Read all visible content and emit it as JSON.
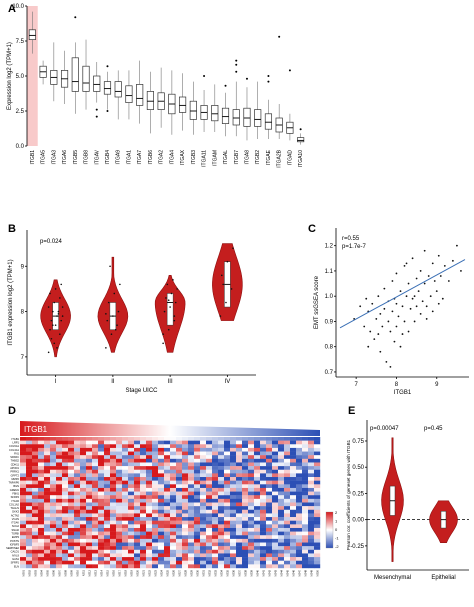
{
  "panels": {
    "A": {
      "label": "A"
    },
    "B": {
      "label": "B"
    },
    "C": {
      "label": "C"
    },
    "D": {
      "label": "D"
    },
    "E": {
      "label": "E"
    }
  },
  "colors": {
    "highlight": "#f5b8b8",
    "violin": "#c41e1e",
    "line": "#3a6fb5",
    "heat_high": "#d7191c",
    "heat_low": "#2c4fb5"
  },
  "chart_data": [
    {
      "panel": "A",
      "type": "box",
      "ylabel": "Expression log2 (TPM+1)",
      "ylim": [
        0.0,
        10.0
      ],
      "yticks": [
        "0.0",
        "2.5",
        "5.0",
        "7.5",
        "10.0"
      ],
      "highlight": "ITGB1",
      "categories": [
        "ITGB1",
        "ITGA5",
        "ITGA3",
        "ITGA6",
        "ITGB5",
        "ITGB8",
        "ITGAV",
        "ITGB4",
        "ITGA9",
        "ITGA1",
        "ITGA7",
        "ITGB6",
        "ITGA2",
        "ITGA4",
        "ITGAX",
        "ITGB3",
        "ITGA11",
        "ITGAM",
        "ITGAL",
        "ITGB7",
        "ITGA8",
        "ITGB2",
        "ITGAE",
        "ITGA2B",
        "ITGAD",
        "ITGA10"
      ],
      "boxes": [
        {
          "min": 6.6,
          "q1": 7.6,
          "median": 7.9,
          "q3": 8.3,
          "max": 9.6,
          "outliers": []
        },
        {
          "min": 4.4,
          "q1": 4.9,
          "median": 5.3,
          "q3": 5.7,
          "max": 6.1,
          "outliers": []
        },
        {
          "min": 3.2,
          "q1": 4.4,
          "median": 4.9,
          "q3": 5.4,
          "max": 7.4,
          "outliers": []
        },
        {
          "min": 3.0,
          "q1": 4.2,
          "median": 4.8,
          "q3": 5.4,
          "max": 6.8,
          "outliers": []
        },
        {
          "min": 2.3,
          "q1": 3.9,
          "median": 4.6,
          "q3": 6.3,
          "max": 7.4,
          "outliers": [
            9.2
          ]
        },
        {
          "min": 2.6,
          "q1": 3.9,
          "median": 4.5,
          "q3": 5.7,
          "max": 7.6,
          "outliers": []
        },
        {
          "min": 3.1,
          "q1": 3.9,
          "median": 4.4,
          "q3": 5.0,
          "max": 6.0,
          "outliers": [
            2.6,
            2.1
          ]
        },
        {
          "min": 2.6,
          "q1": 3.7,
          "median": 4.1,
          "q3": 4.6,
          "max": 5.3,
          "outliers": [
            5.7,
            2.5
          ]
        },
        {
          "min": 1.9,
          "q1": 3.5,
          "median": 3.9,
          "q3": 4.6,
          "max": 5.4,
          "outliers": []
        },
        {
          "min": 1.9,
          "q1": 3.1,
          "median": 3.6,
          "q3": 4.3,
          "max": 5.4,
          "outliers": []
        },
        {
          "min": 1.6,
          "q1": 2.9,
          "median": 3.4,
          "q3": 4.4,
          "max": 6.1,
          "outliers": []
        },
        {
          "min": 0.9,
          "q1": 2.6,
          "median": 3.2,
          "q3": 3.9,
          "max": 5.3,
          "outliers": []
        },
        {
          "min": 1.3,
          "q1": 2.6,
          "median": 3.2,
          "q3": 3.8,
          "max": 5.6,
          "outliers": []
        },
        {
          "min": 0.8,
          "q1": 2.3,
          "median": 3.0,
          "q3": 3.7,
          "max": 5.4,
          "outliers": []
        },
        {
          "min": 1.1,
          "q1": 2.4,
          "median": 2.9,
          "q3": 3.5,
          "max": 5.2,
          "outliers": []
        },
        {
          "min": 0.8,
          "q1": 1.9,
          "median": 2.5,
          "q3": 3.2,
          "max": 4.6,
          "outliers": []
        },
        {
          "min": 1.0,
          "q1": 1.9,
          "median": 2.4,
          "q3": 2.9,
          "max": 4.0,
          "outliers": [
            5.0
          ]
        },
        {
          "min": 1.0,
          "q1": 1.8,
          "median": 2.3,
          "q3": 2.9,
          "max": 4.4,
          "outliers": []
        },
        {
          "min": 0.7,
          "q1": 1.6,
          "median": 2.1,
          "q3": 2.7,
          "max": 3.8,
          "outliers": [
            4.3
          ]
        },
        {
          "min": 0.7,
          "q1": 1.5,
          "median": 2.0,
          "q3": 2.6,
          "max": 4.6,
          "outliers": [
            6.1,
            5.8,
            5.3
          ]
        },
        {
          "min": 0.4,
          "q1": 1.4,
          "median": 2.0,
          "q3": 2.7,
          "max": 4.2,
          "outliers": [
            4.8
          ]
        },
        {
          "min": 0.5,
          "q1": 1.4,
          "median": 1.9,
          "q3": 2.6,
          "max": 4.6,
          "outliers": []
        },
        {
          "min": 0.5,
          "q1": 1.2,
          "median": 1.7,
          "q3": 2.3,
          "max": 3.3,
          "outliers": [
            5.0,
            4.6
          ]
        },
        {
          "min": 0.5,
          "q1": 1.0,
          "median": 1.5,
          "q3": 2.0,
          "max": 3.0,
          "outliers": [
            7.8
          ]
        },
        {
          "min": 0.4,
          "q1": 0.9,
          "median": 1.3,
          "q3": 1.7,
          "max": 2.3,
          "outliers": [
            5.4
          ]
        },
        {
          "min": 0.1,
          "q1": 0.3,
          "median": 0.4,
          "q3": 0.6,
          "max": 0.9,
          "outliers": [
            1.2
          ]
        }
      ]
    },
    {
      "panel": "B",
      "type": "violin",
      "ylabel": "ITGB1 expression log2 (TPM+1)",
      "xlabel": "Stage UICC",
      "annotation": "p=0.024",
      "ylim": [
        6.6,
        9.8
      ],
      "yticks": [
        "7",
        "8",
        "9"
      ],
      "categories": [
        "I",
        "II",
        "III",
        "IV"
      ],
      "groups": [
        {
          "min": 7.0,
          "q1": 7.6,
          "median": 7.9,
          "q3": 8.2,
          "max": 8.7,
          "points": [
            7.1,
            7.3,
            7.5,
            7.6,
            7.7,
            7.8,
            7.8,
            7.9,
            7.9,
            8.0,
            8.0,
            8.1,
            8.2,
            8.3,
            8.4,
            8.5,
            8.6,
            7.4,
            7.2,
            8.1,
            7.7,
            7.95
          ]
        },
        {
          "min": 7.1,
          "q1": 7.6,
          "median": 7.9,
          "q3": 8.2,
          "max": 9.2,
          "points": [
            7.2,
            7.5,
            7.7,
            7.8,
            7.9,
            8.0,
            8.2,
            8.4,
            8.6,
            9.0,
            7.6,
            7.95
          ]
        },
        {
          "min": 7.1,
          "q1": 7.7,
          "median": 8.2,
          "q3": 8.4,
          "max": 8.8,
          "points": [
            7.3,
            7.6,
            7.8,
            8.0,
            8.1,
            8.2,
            8.3,
            8.4,
            8.5,
            8.6,
            8.7,
            7.5,
            8.25,
            7.9
          ]
        },
        {
          "min": 7.8,
          "q1": 8.1,
          "median": 8.6,
          "q3": 9.1,
          "max": 9.5,
          "points": [
            7.9,
            8.2,
            8.5,
            8.8,
            9.1,
            9.4,
            8.6
          ]
        }
      ]
    },
    {
      "panel": "C",
      "type": "scatter",
      "ylabel": "EMT ssGSEA score",
      "xlabel": "ITGB1",
      "annotations": [
        "r=0.55",
        "p=1.7e-7"
      ],
      "xlim": [
        6.5,
        9.8
      ],
      "ylim": [
        0.68,
        1.27
      ],
      "xticks": [
        "7",
        "8",
        "9"
      ],
      "yticks": [
        "0.7",
        "0.8",
        "0.9",
        "1.0",
        "1.1",
        "1.2"
      ],
      "fit": {
        "x": [
          6.6,
          9.7
        ],
        "y": [
          0.875,
          1.145
        ]
      },
      "points": [
        [
          6.95,
          0.91
        ],
        [
          7.1,
          0.96
        ],
        [
          7.2,
          0.88
        ],
        [
          7.25,
          0.99
        ],
        [
          7.3,
          0.94
        ],
        [
          7.35,
          0.86
        ],
        [
          7.4,
          0.97
        ],
        [
          7.45,
          0.83
        ],
        [
          7.5,
          0.91
        ],
        [
          7.55,
          1.0
        ],
        [
          7.6,
          0.93
        ],
        [
          7.6,
          0.78
        ],
        [
          7.65,
          0.88
        ],
        [
          7.7,
          0.95
        ],
        [
          7.7,
          1.03
        ],
        [
          7.75,
          0.74
        ],
        [
          7.8,
          0.9
        ],
        [
          7.8,
          0.98
        ],
        [
          7.85,
          0.86
        ],
        [
          7.9,
          1.06
        ],
        [
          7.9,
          0.94
        ],
        [
          7.95,
          0.82
        ],
        [
          8.0,
          0.97
        ],
        [
          8.0,
          1.09
        ],
        [
          8.0,
          0.88
        ],
        [
          8.05,
          0.92
        ],
        [
          8.1,
          1.02
        ],
        [
          8.1,
          0.8
        ],
        [
          8.15,
          0.96
        ],
        [
          8.2,
          1.12
        ],
        [
          8.2,
          0.9
        ],
        [
          8.25,
          1.0
        ],
        [
          8.3,
          0.86
        ],
        [
          8.3,
          1.05
        ],
        [
          8.35,
          0.95
        ],
        [
          8.4,
          1.15
        ],
        [
          8.4,
          0.99
        ],
        [
          8.45,
          0.9
        ],
        [
          8.5,
          1.07
        ],
        [
          8.5,
          0.96
        ],
        [
          8.55,
          1.02
        ],
        [
          8.6,
          0.93
        ],
        [
          8.6,
          1.1
        ],
        [
          8.65,
          0.98
        ],
        [
          8.7,
          1.05
        ],
        [
          8.7,
          1.18
        ],
        [
          8.75,
          0.96
        ],
        [
          8.8,
          1.08
        ],
        [
          8.85,
          1.0
        ],
        [
          8.9,
          1.13
        ],
        [
          8.9,
          0.94
        ],
        [
          8.95,
          1.06
        ],
        [
          9.0,
          1.02
        ],
        [
          9.05,
          1.16
        ],
        [
          9.1,
          1.08
        ],
        [
          9.15,
          0.99
        ],
        [
          9.2,
          1.12
        ],
        [
          9.3,
          1.06
        ],
        [
          9.4,
          1.14
        ],
        [
          9.5,
          1.2
        ],
        [
          9.6,
          1.1
        ],
        [
          7.3,
          0.8
        ],
        [
          7.55,
          0.85
        ],
        [
          7.85,
          0.72
        ],
        [
          8.15,
          0.85
        ],
        [
          8.45,
          1.0
        ],
        [
          8.75,
          0.91
        ],
        [
          9.05,
          0.97
        ],
        [
          8.25,
          1.13
        ],
        [
          7.95,
          0.99
        ]
      ]
    },
    {
      "panel": "D",
      "type": "heatmap",
      "gradient_label": "ITGB1",
      "legend_ticks": [
        "2",
        "1",
        "0",
        "-1",
        "-2"
      ],
      "rows": [
        "ITGB1",
        "LRP1",
        "COL5A1",
        "COL3A1",
        "FN1",
        "SPARC",
        "THBS2",
        "CDH11",
        "APOD1",
        "PRRX1",
        "GFPT2",
        "MMP2",
        "TNFAIP6",
        "BGN",
        "GREM1",
        "FBN1",
        "SFRP4",
        "ITGA5",
        "COL1A2",
        "TAGLN",
        "DKK3",
        "ACTA2",
        "VCAN",
        "ITGAV",
        "SCG2",
        "SNAI2",
        "TGFBI",
        "EMP3",
        "POSTN",
        "IGFBP3",
        "SERPINE2",
        "CALD1",
        "MYL9",
        "GAS1",
        "SFRP1",
        "ELN"
      ],
      "columns": [
        "NS01",
        "NS02",
        "NS03",
        "NS04",
        "NS05",
        "NS06",
        "NS07",
        "NS08",
        "NS09",
        "NS10",
        "NS11",
        "NS12",
        "NS13",
        "NS14",
        "NS15",
        "NS16",
        "NS17",
        "NS18",
        "NS19",
        "NS20",
        "NS21",
        "NS22",
        "NS23",
        "NS24",
        "NS25",
        "NS26",
        "NS27",
        "NS28",
        "NS29",
        "NS30",
        "NS31",
        "NS32",
        "NS33",
        "NS34",
        "NS35",
        "NS36",
        "NS37",
        "NS38",
        "NS39",
        "NS40",
        "NS41",
        "NS42",
        "NS43",
        "NS44",
        "NS45",
        "NS46",
        "NS47",
        "NS48",
        "NS49",
        "NS50"
      ]
    },
    {
      "panel": "E",
      "type": "violin",
      "ylabel": "Pearson cor. coefficients of geneset genes with ITGB1",
      "annotations": [
        "p=0.00047",
        "p=0.45"
      ],
      "ylim": [
        -0.48,
        0.95
      ],
      "yticks": [
        "-0.25",
        "0.00",
        "0.25",
        "0.50",
        "0.75"
      ],
      "reference_line": 0.0,
      "categories": [
        "Mesenchymal",
        "Epithelial"
      ],
      "groups": [
        {
          "min": -0.4,
          "q1": 0.04,
          "median": 0.18,
          "q3": 0.32,
          "max": 0.78
        },
        {
          "min": -0.22,
          "q1": -0.08,
          "median": 0.0,
          "q3": 0.08,
          "max": 0.18
        }
      ]
    }
  ]
}
